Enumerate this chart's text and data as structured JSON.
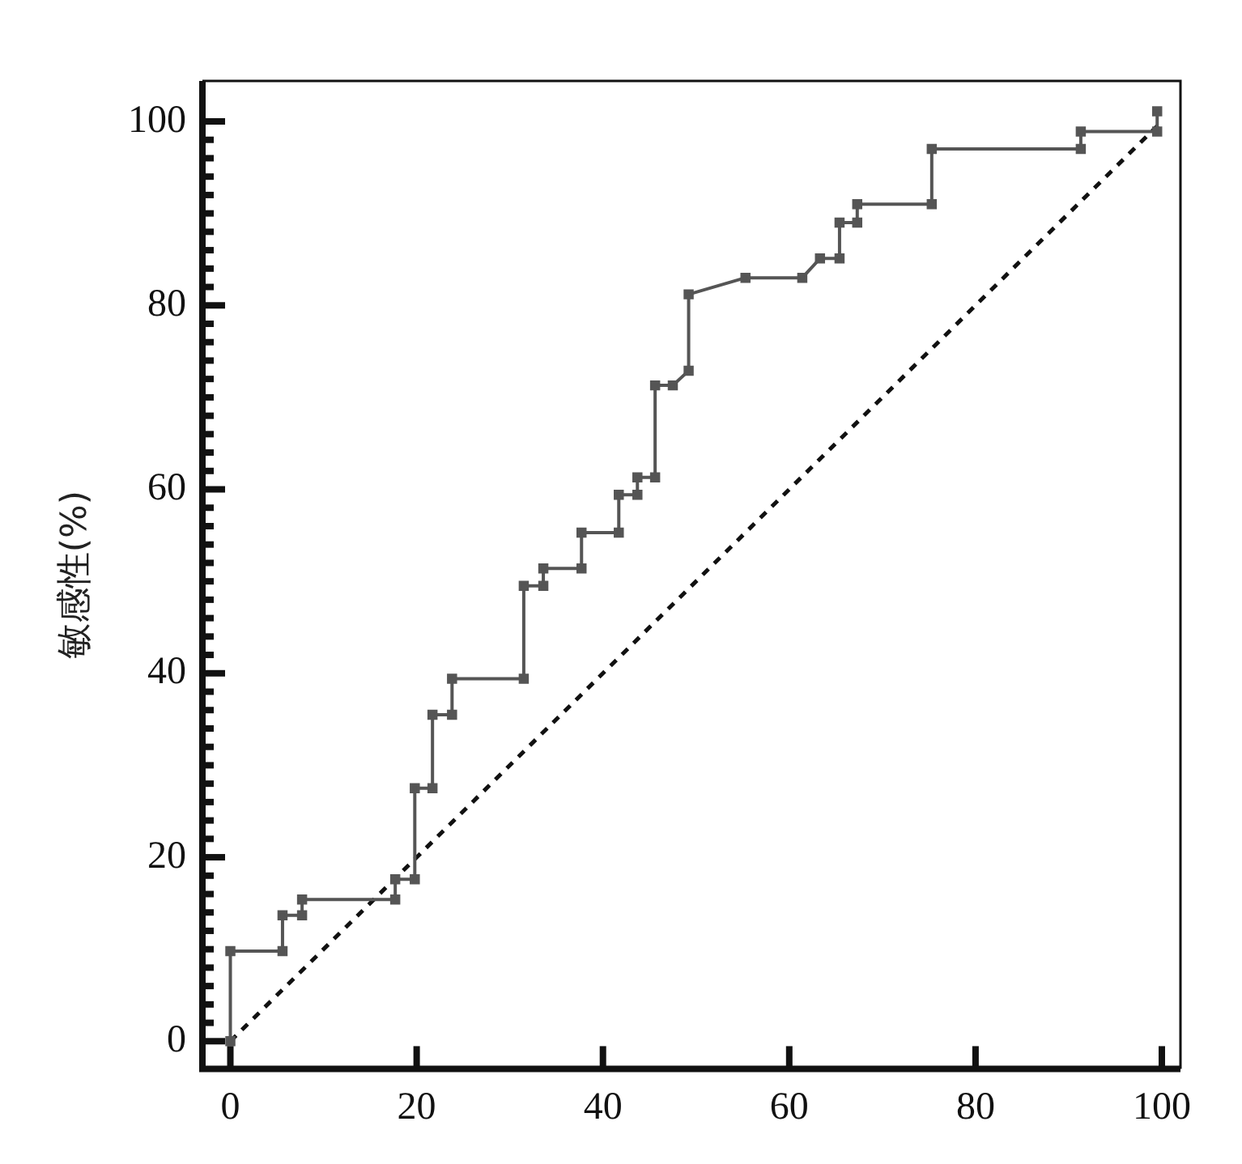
{
  "chart_data": {
    "type": "line",
    "ylabel": "敏感性(%)",
    "xlim": [
      -3,
      102
    ],
    "ylim": [
      -3,
      104.4
    ],
    "xticks": [
      0,
      20,
      40,
      60,
      80,
      100
    ],
    "yticks": [
      0,
      {
        "value": 2,
        "label": null
      },
      {
        "value": 4,
        "label": null
      },
      {
        "value": 6,
        "label": null
      },
      {
        "value": 8,
        "label": null
      },
      {
        "value": 10,
        "label": null
      },
      {
        "value": 12,
        "label": null
      },
      {
        "value": 14,
        "label": null
      },
      {
        "value": 16,
        "label": null
      },
      {
        "value": 18,
        "label": null
      },
      20,
      {
        "value": 22,
        "label": null
      },
      {
        "value": 24,
        "label": null
      },
      {
        "value": 26,
        "label": null
      },
      {
        "value": 28,
        "label": null
      },
      {
        "value": 30,
        "label": null
      },
      {
        "value": 32,
        "label": null
      },
      {
        "value": 34,
        "label": null
      },
      {
        "value": 36,
        "label": null
      },
      {
        "value": 38,
        "label": null
      },
      40,
      {
        "value": 42,
        "label": null
      },
      {
        "value": 44,
        "label": null
      },
      {
        "value": 46,
        "label": null
      },
      {
        "value": 48,
        "label": null
      },
      {
        "value": 50,
        "label": null
      },
      {
        "value": 52,
        "label": null
      },
      {
        "value": 54,
        "label": null
      },
      {
        "value": 56,
        "label": null
      },
      {
        "value": 58,
        "label": null
      },
      60,
      {
        "value": 62,
        "label": null
      },
      {
        "value": 64,
        "label": null
      },
      {
        "value": 66,
        "label": null
      },
      {
        "value": 68,
        "label": null
      },
      {
        "value": 70,
        "label": null
      },
      {
        "value": 72,
        "label": null
      },
      {
        "value": 74,
        "label": null
      },
      {
        "value": 76,
        "label": null
      },
      {
        "value": 78,
        "label": null
      },
      80,
      {
        "value": 82,
        "label": null
      },
      {
        "value": 84,
        "label": null
      },
      {
        "value": 86,
        "label": null
      },
      {
        "value": 88,
        "label": null
      },
      {
        "value": 90,
        "label": null
      },
      {
        "value": 92,
        "label": null
      },
      {
        "value": 94,
        "label": null
      },
      {
        "value": 96,
        "label": null
      },
      {
        "value": 98,
        "label": null
      },
      100
    ],
    "grid": false,
    "legend": false,
    "series": [
      {
        "color": "#555555",
        "marker": "square",
        "line_style": "solid",
        "x": [
          0,
          0,
          5.6,
          5.6,
          7.7,
          7.7,
          17.7,
          17.7,
          19.8,
          19.8,
          21.7,
          21.7,
          23.8,
          23.8,
          31.5,
          31.5,
          33.6,
          33.6,
          37.7,
          37.7,
          41.7,
          41.7,
          43.7,
          43.7,
          45.6,
          45.6,
          47.5,
          49.2,
          49.2,
          55.3,
          61.4,
          63.3,
          65.4,
          65.4,
          67.3,
          67.3,
          75.3,
          75.3,
          91.3,
          91.3,
          99.5,
          99.5
        ],
        "values": [
          0,
          9.8,
          9.8,
          13.7,
          13.7,
          15.4,
          15.4,
          17.6,
          17.6,
          27.5,
          27.5,
          35.5,
          35.5,
          39.4,
          39.4,
          49.5,
          49.5,
          51.4,
          51.4,
          55.3,
          55.3,
          59.4,
          59.4,
          61.3,
          61.3,
          71.3,
          71.3,
          72.9,
          81.2,
          83,
          83,
          85.1,
          85.1,
          89,
          89,
          91,
          91,
          97,
          97,
          98.9,
          98.9,
          101.1
        ]
      },
      {
        "color": "#111111",
        "marker": "none",
        "line_style": "dashed",
        "x": [
          0,
          100
        ],
        "values": [
          0,
          100
        ]
      }
    ]
  }
}
